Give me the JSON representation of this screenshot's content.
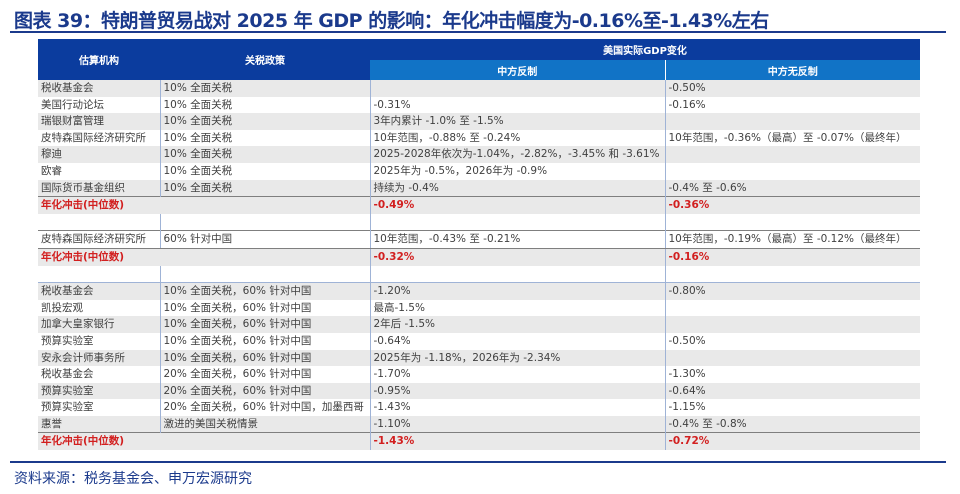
{
  "title": "图表 39：特朗普贸易战对 2025 年 GDP 的影响：年化冲击幅度为-0.16%至-1.43%左右",
  "table": {
    "headers": {
      "agency": "估算机构",
      "policy": "关税政策",
      "gdp_change": "美国实际GDP变化",
      "retaliation": "中方反制",
      "no_retaliation": "中方无反制"
    },
    "rows": [
      {
        "type": "data",
        "stripe": "g",
        "agency": "税收基金会",
        "policy": "10% 全面关税",
        "retaliation": "",
        "no_retaliation": "-0.50%"
      },
      {
        "type": "data",
        "stripe": "w",
        "agency": "美国行动论坛",
        "policy": "10% 全面关税",
        "retaliation": "-0.31%",
        "no_retaliation": "-0.16%"
      },
      {
        "type": "data",
        "stripe": "g",
        "agency": "瑞银财富管理",
        "policy": "10% 全面关税",
        "retaliation": "3年内累计 -1.0% 至 -1.5%",
        "no_retaliation": ""
      },
      {
        "type": "data",
        "stripe": "w",
        "agency": "皮特森国际经济研究所",
        "policy": "10% 全面关税",
        "retaliation": "10年范围，-0.88% 至 -0.24%",
        "no_retaliation": "10年范围，-0.36%（最高）至 -0.07%（最终年）"
      },
      {
        "type": "data",
        "stripe": "g",
        "agency": "穆迪",
        "policy": "10% 全面关税",
        "retaliation": "2025-2028年依次为-1.04%，-2.82%，-3.45% 和 -3.61%",
        "no_retaliation": ""
      },
      {
        "type": "data",
        "stripe": "w",
        "agency": "欧睿",
        "policy": "10% 全面关税",
        "retaliation": "2025年为 -0.5%，2026年为 -0.9%",
        "no_retaliation": ""
      },
      {
        "type": "data",
        "stripe": "g",
        "agency": "国际货币基金组织",
        "policy": "10% 全面关税",
        "retaliation": "持续为 -0.4%",
        "no_retaliation": "-0.4% 至 -0.6%"
      },
      {
        "type": "median",
        "stripe": "g",
        "agency": "年化冲击(中位数)",
        "policy": "",
        "retaliation": "-0.49%",
        "no_retaliation": "-0.36%"
      },
      {
        "type": "blank",
        "stripe": "w",
        "agency": "",
        "policy": "",
        "retaliation": "",
        "no_retaliation": ""
      },
      {
        "type": "boxed",
        "stripe": "w",
        "agency": "皮特森国际经济研究所",
        "policy": "60% 针对中国",
        "retaliation": "10年范围，-0.43% 至 -0.21%",
        "no_retaliation": " 10年范围，-0.19%（最高）至 -0.12%（最终年）"
      },
      {
        "type": "median",
        "stripe": "g",
        "agency": "年化冲击(中位数)",
        "policy": "",
        "retaliation": "-0.32%",
        "no_retaliation": "-0.16%"
      },
      {
        "type": "blank",
        "stripe": "w",
        "agency": "",
        "policy": "",
        "retaliation": "",
        "no_retaliation": ""
      },
      {
        "type": "data",
        "stripe": "g",
        "agency": "税收基金会",
        "policy": "10% 全面关税，60% 针对中国",
        "retaliation": "-1.20%",
        "no_retaliation": "-0.80%",
        "top": true
      },
      {
        "type": "data",
        "stripe": "w",
        "agency": "凯投宏观",
        "policy": "10% 全面关税，60% 针对中国",
        "retaliation": "最高-1.5%",
        "no_retaliation": ""
      },
      {
        "type": "data",
        "stripe": "g",
        "agency": "加拿大皇家银行",
        "policy": "10% 全面关税，60% 针对中国",
        "retaliation": "2年后 -1.5%",
        "no_retaliation": ""
      },
      {
        "type": "data",
        "stripe": "w",
        "agency": "预算实验室",
        "policy": "10% 全面关税，60% 针对中国",
        "retaliation": "-0.64%",
        "no_retaliation": "-0.50%"
      },
      {
        "type": "data",
        "stripe": "g",
        "agency": "安永会计师事务所",
        "policy": "10% 全面关税，60% 针对中国",
        "retaliation": "2025年为 -1.18%，2026年为 -2.34%",
        "no_retaliation": ""
      },
      {
        "type": "data",
        "stripe": "w",
        "agency": "税收基金会",
        "policy": "20% 全面关税，60% 针对中国",
        "retaliation": "-1.70%",
        "no_retaliation": "-1.30%"
      },
      {
        "type": "data",
        "stripe": "g",
        "agency": "预算实验室",
        "policy": "20% 全面关税，60% 针对中国",
        "retaliation": "-0.95%",
        "no_retaliation": "-0.64%"
      },
      {
        "type": "data",
        "stripe": "w",
        "agency": "预算实验室",
        "policy": "20% 全面关税，60% 针对中国，加墨西哥",
        "retaliation": "-1.43%",
        "no_retaliation": "-1.15%"
      },
      {
        "type": "data",
        "stripe": "g",
        "agency": "惠誉",
        "policy": "激进的美国关税情景",
        "retaliation": "-1.10%",
        "no_retaliation": "-0.4% 至 -0.8%"
      },
      {
        "type": "median",
        "stripe": "g",
        "agency": "年化冲击(中位数)",
        "policy": "",
        "retaliation": "-1.43%",
        "no_retaliation": "-0.72%"
      }
    ]
  },
  "source": "资料来源：税务基金会、申万宏源研究",
  "colors": {
    "title": "#1b3a8c",
    "header_dark": "#0b3c9e",
    "header_light": "#1173c6",
    "median_text": "#d21f1f"
  }
}
